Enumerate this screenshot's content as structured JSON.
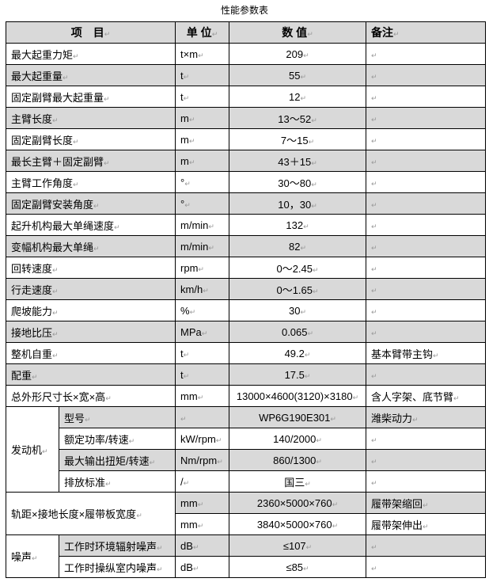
{
  "title": "性能参数表",
  "header": {
    "item": "项　目",
    "unit": "单 位",
    "value": "数 值",
    "note": "备注"
  },
  "rows": [
    {
      "item": "最大起重力矩",
      "unit": "t×m",
      "value": "209",
      "note": ""
    },
    {
      "item": "最大起重量",
      "unit": "t",
      "value": "55",
      "note": ""
    },
    {
      "item": "固定副臂最大起重量",
      "unit": "t",
      "value": "12",
      "note": ""
    },
    {
      "item": "主臂长度",
      "unit": "m",
      "value": "13～52",
      "note": ""
    },
    {
      "item": "固定副臂长度",
      "unit": "m",
      "value": "7～15",
      "note": ""
    },
    {
      "item": "最长主臂＋固定副臂",
      "unit": "m",
      "value": "43＋15",
      "note": ""
    },
    {
      "item": "主臂工作角度",
      "unit": "°",
      "value": "30～80",
      "note": ""
    },
    {
      "item": "固定副臂安装角度",
      "unit": "°",
      "value": "10，30",
      "note": ""
    },
    {
      "item": "起升机构最大单绳速度",
      "unit": "m/min",
      "value": "132",
      "note": ""
    },
    {
      "item": "变幅机构最大单绳",
      "unit": "m/min",
      "value": "82",
      "note": ""
    },
    {
      "item": "回转速度",
      "unit": "rpm",
      "value": "0～2.45",
      "note": ""
    },
    {
      "item": "行走速度",
      "unit": "km/h",
      "value": "0～1.65",
      "note": ""
    },
    {
      "item": "爬坡能力",
      "unit": "%",
      "value": "30",
      "note": ""
    },
    {
      "item": "接地比压",
      "unit": "MPa",
      "value": "0.065",
      "note": ""
    },
    {
      "item": "整机自重",
      "unit": "t",
      "value": "49.2",
      "note": "基本臂带主钩"
    },
    {
      "item": "配重",
      "unit": "t",
      "value": "17.5",
      "note": ""
    },
    {
      "item": "总外形尺寸长×宽×高",
      "unit": "mm",
      "value": "13000×4600(3120)×3180",
      "note": "含人字架、底节臂"
    }
  ],
  "engine": {
    "label": "发动机",
    "rows": [
      {
        "item": "型号",
        "unit": "",
        "value": "WP6G190E301",
        "note": "潍柴动力"
      },
      {
        "item": "额定功率/转速",
        "unit": "kW/rpm",
        "value": "140/2000",
        "note": ""
      },
      {
        "item": "最大输出扭矩/转速",
        "unit": "Nm/rpm",
        "value": "860/1300",
        "note": ""
      },
      {
        "item": "排放标准",
        "unit": "/",
        "value": "国三",
        "note": ""
      }
    ]
  },
  "track": {
    "label": "轨距×接地长度×履带板宽度",
    "rows": [
      {
        "unit": "mm",
        "value": "2360×5000×760",
        "note": "履带架缩回"
      },
      {
        "unit": "mm",
        "value": "3840×5000×760",
        "note": "履带架伸出"
      }
    ]
  },
  "noise": {
    "label": "噪声",
    "rows": [
      {
        "item": "工作时环境辐射噪声",
        "unit": "dB",
        "value": "≤107",
        "note": ""
      },
      {
        "item": "工作时操纵室内噪声",
        "unit": "dB",
        "value": "≤85",
        "note": ""
      }
    ]
  }
}
